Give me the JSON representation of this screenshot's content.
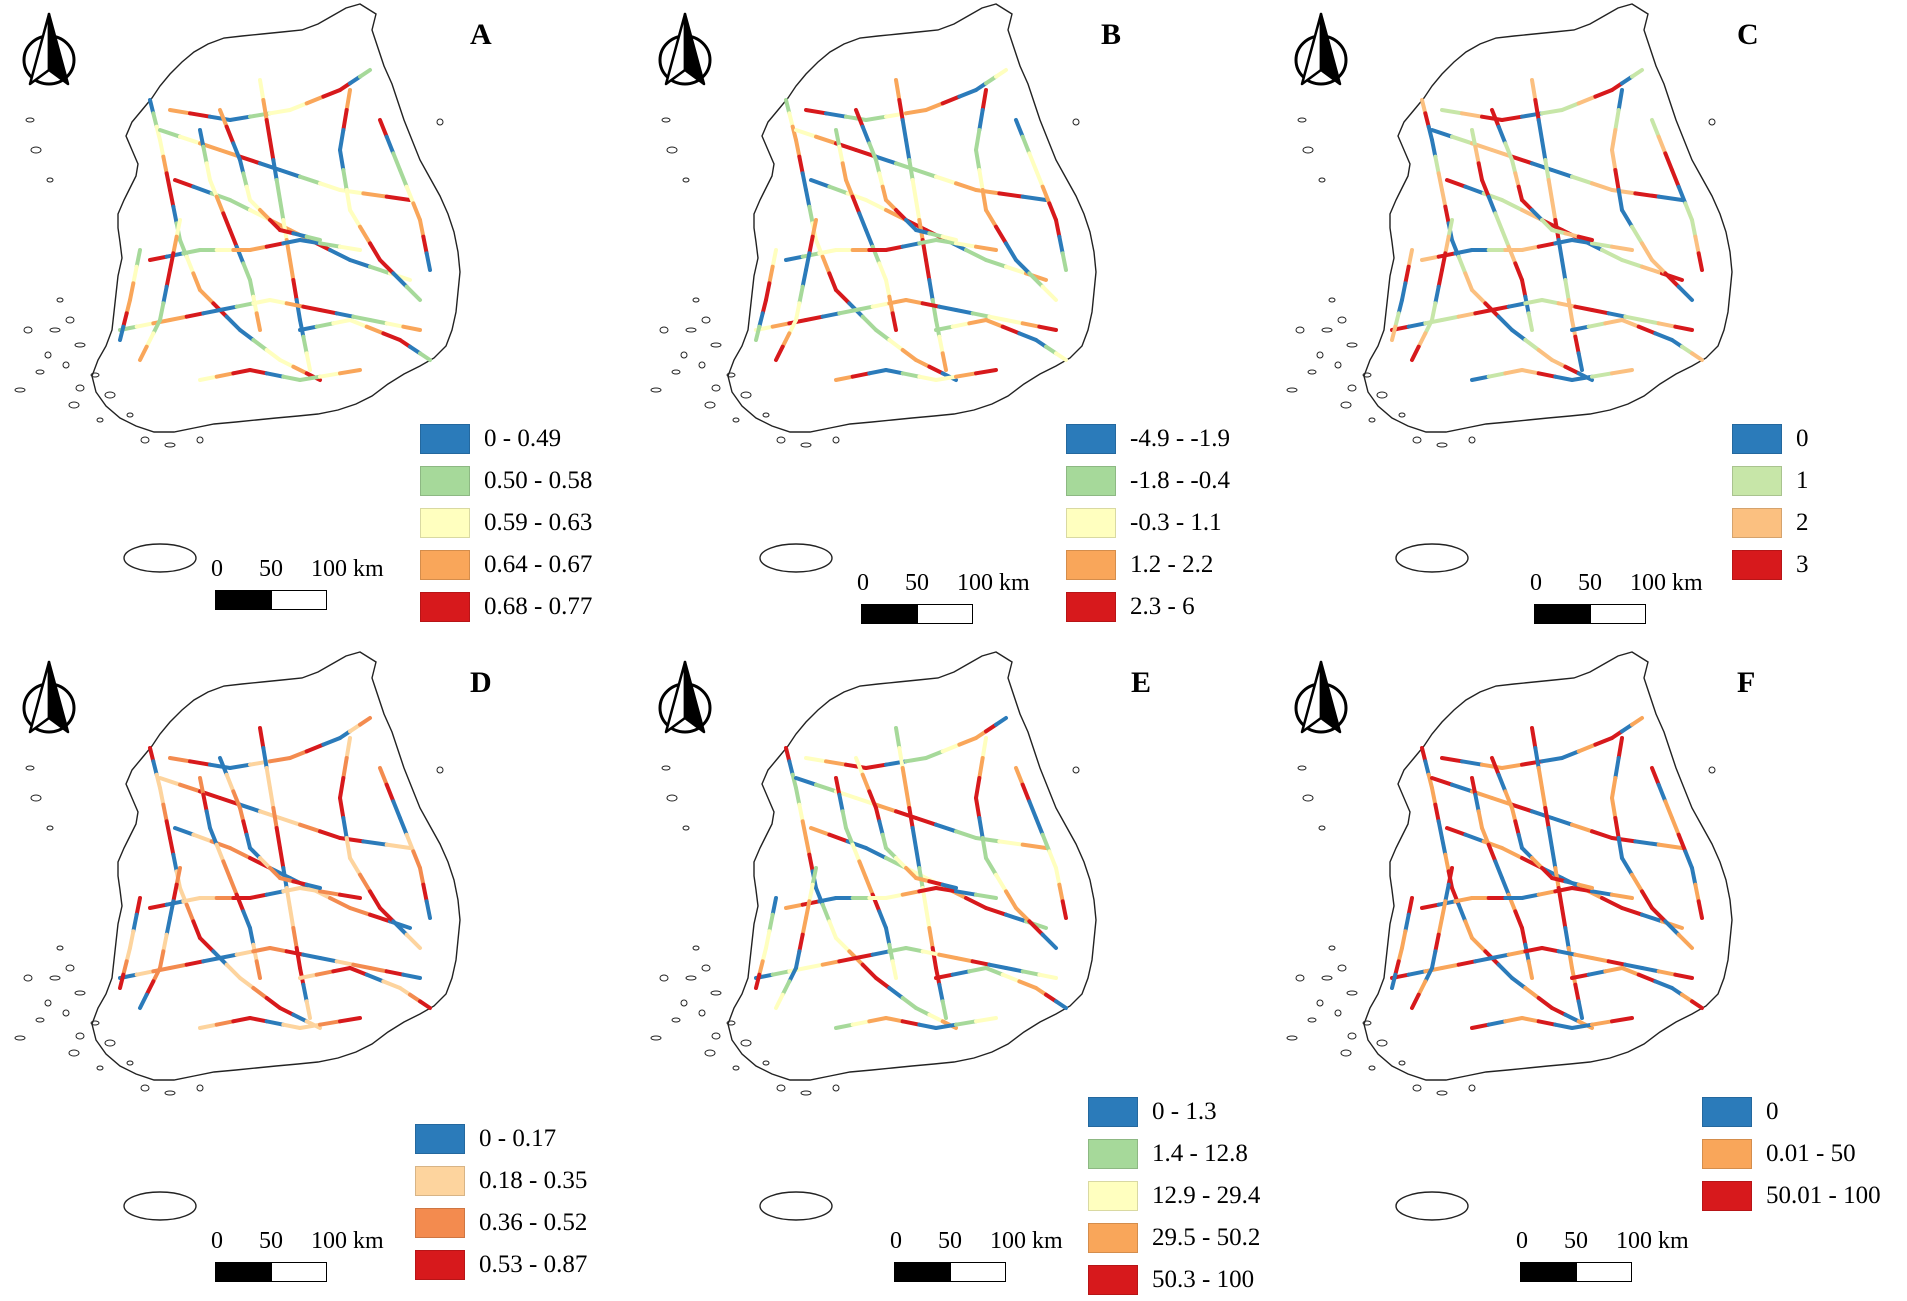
{
  "scale_bar": {
    "tick_0": "0",
    "tick_50": "50",
    "tick_100": "100 km"
  },
  "north_icon": "north-arrow-icon",
  "panels": [
    {
      "label": "A",
      "legend": [
        {
          "label": "0 - 0.49",
          "color": "#2b7bba"
        },
        {
          "label": "0.50 - 0.58",
          "color": "#a6d99a"
        },
        {
          "label": "0.59 - 0.63",
          "color": "#ffffbf"
        },
        {
          "label": "0.64 - 0.67",
          "color": "#f9a65a"
        },
        {
          "label": "0.68 - 0.77",
          "color": "#d7191c"
        }
      ]
    },
    {
      "label": "B",
      "legend": [
        {
          "label": "-4.9 - -1.9",
          "color": "#2b7bba"
        },
        {
          "label": "-1.8 - -0.4",
          "color": "#a6d99a"
        },
        {
          "label": "-0.3 - 1.1",
          "color": "#ffffbf"
        },
        {
          "label": "1.2 - 2.2",
          "color": "#f9a65a"
        },
        {
          "label": "2.3 - 6",
          "color": "#d7191c"
        }
      ]
    },
    {
      "label": "C",
      "legend": [
        {
          "label": "0",
          "color": "#2b7bba"
        },
        {
          "label": "1",
          "color": "#c7e6a8"
        },
        {
          "label": "2",
          "color": "#fbc080"
        },
        {
          "label": "3",
          "color": "#d7191c"
        }
      ]
    },
    {
      "label": "D",
      "legend": [
        {
          "label": "0 - 0.17",
          "color": "#2b7bba"
        },
        {
          "label": "0.18 - 0.35",
          "color": "#fdd49e"
        },
        {
          "label": "0.36 - 0.52",
          "color": "#f38b4f"
        },
        {
          "label": "0.53 - 0.87",
          "color": "#d7191c"
        }
      ]
    },
    {
      "label": "E",
      "legend": [
        {
          "label": "0 - 1.3",
          "color": "#2b7bba"
        },
        {
          "label": "1.4 - 12.8",
          "color": "#a6d99a"
        },
        {
          "label": "12.9 - 29.4",
          "color": "#ffffbf"
        },
        {
          "label": "29.5 - 50.2",
          "color": "#f9a65a"
        },
        {
          "label": "50.3 - 100",
          "color": "#d7191c"
        }
      ]
    },
    {
      "label": "F",
      "legend": [
        {
          "label": "0",
          "color": "#2b7bba"
        },
        {
          "label": "0.01 - 50",
          "color": "#f9a65a"
        },
        {
          "label": "50.01 - 100",
          "color": "#d7191c"
        }
      ]
    }
  ]
}
